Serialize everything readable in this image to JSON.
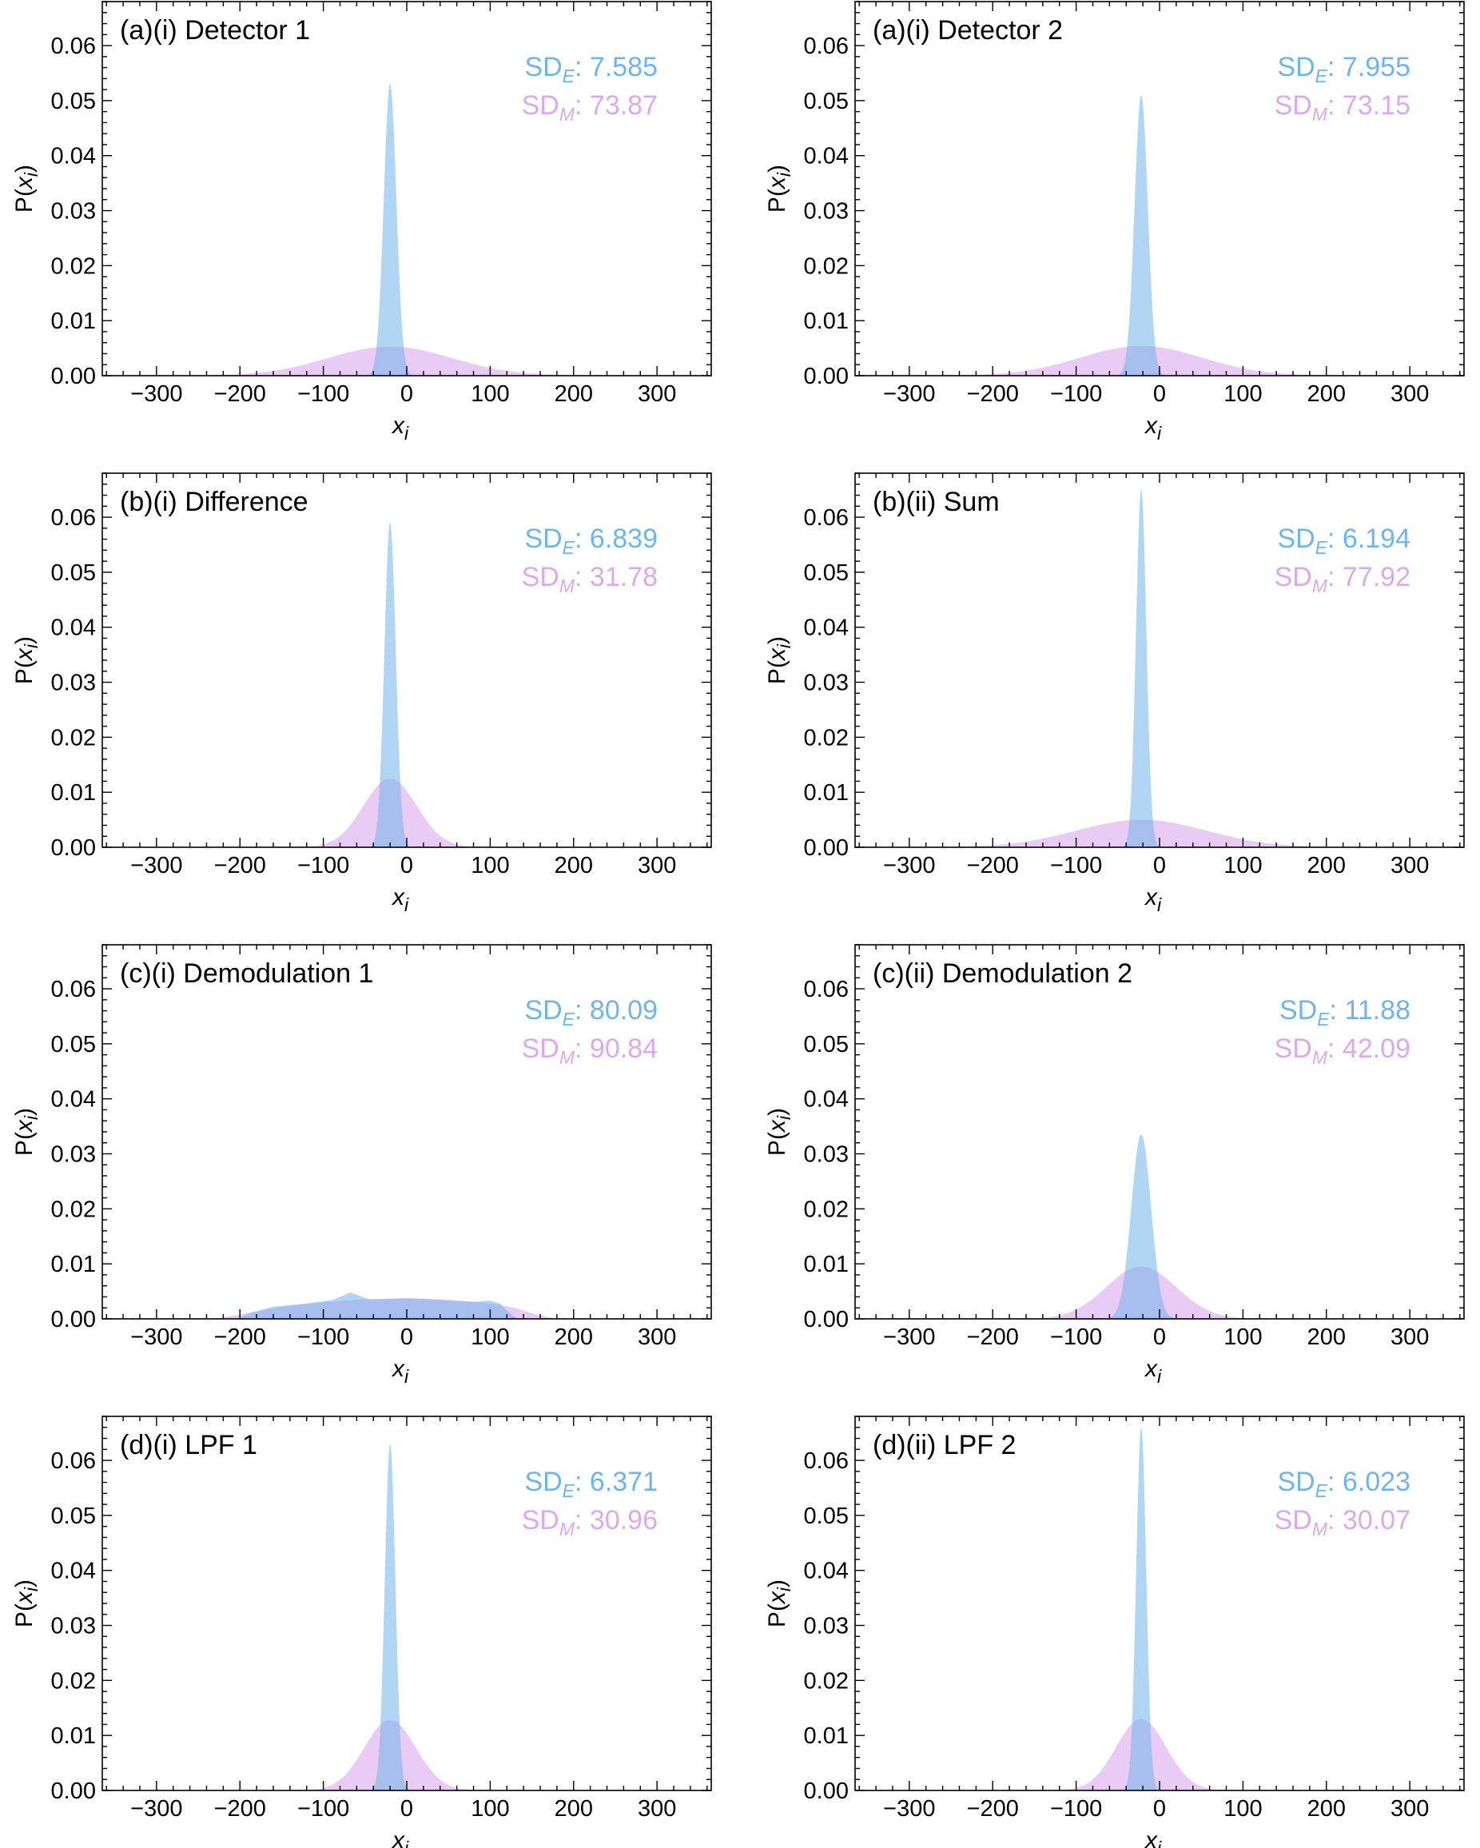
{
  "colors": {
    "experiment": "#6fb4ea",
    "model": "#dca8ee",
    "overlap": "#8aa6ea",
    "axis": "#000000"
  },
  "chart_data": [
    {
      "type": "area",
      "title": "(a)(i) Detector 1",
      "xlabel": "x",
      "xlabel_sub": "i",
      "ylabel": "P(x",
      "ylabel_sub": "i",
      "ylabel_close": ")",
      "xlim": [
        -365,
        365
      ],
      "ylim": [
        0,
        0.068
      ],
      "xticks": [
        -300,
        -200,
        -100,
        0,
        100,
        200,
        300
      ],
      "yticks": [
        0.0,
        0.01,
        0.02,
        0.03,
        0.04,
        0.05,
        0.06
      ],
      "ytick_labels": [
        "0.00",
        "0.01",
        "0.02",
        "0.03",
        "0.04",
        "0.05",
        "0.06"
      ],
      "sd_e_label": "SD",
      "sd_e_sub": "E",
      "sd_e_value": ": 7.585",
      "sd_m_label": "SD",
      "sd_m_sub": "M",
      "sd_m_value": ": 73.87",
      "series": [
        {
          "name": "SD_E (experiment)",
          "shape": "gaussian",
          "mean": -20,
          "sd": 7.585,
          "peak": 0.053
        },
        {
          "name": "SD_M (model)",
          "shape": "gaussian",
          "mean": -20,
          "sd": 73.87,
          "peak": 0.0053
        }
      ]
    },
    {
      "type": "area",
      "title": "(a)(i) Detector 2",
      "xlabel": "x",
      "xlabel_sub": "i",
      "ylabel": "P(x",
      "ylabel_sub": "i",
      "ylabel_close": ")",
      "xlim": [
        -365,
        365
      ],
      "ylim": [
        0,
        0.068
      ],
      "xticks": [
        -300,
        -200,
        -100,
        0,
        100,
        200,
        300
      ],
      "yticks": [
        0.0,
        0.01,
        0.02,
        0.03,
        0.04,
        0.05,
        0.06
      ],
      "ytick_labels": [
        "0.00",
        "0.01",
        "0.02",
        "0.03",
        "0.04",
        "0.05",
        "0.06"
      ],
      "sd_e_label": "SD",
      "sd_e_sub": "E",
      "sd_e_value": ": 7.955",
      "sd_m_label": "SD",
      "sd_m_sub": "M",
      "sd_m_value": ": 73.15",
      "series": [
        {
          "name": "SD_E (experiment)",
          "shape": "gaussian",
          "mean": -22,
          "sd": 7.955,
          "peak": 0.051
        },
        {
          "name": "SD_M (model)",
          "shape": "gaussian",
          "mean": -22,
          "sd": 73.15,
          "peak": 0.0054
        }
      ]
    },
    {
      "type": "area",
      "title": "(b)(i) Difference",
      "xlabel": "x",
      "xlabel_sub": "i",
      "ylabel": "P(x",
      "ylabel_sub": "i",
      "ylabel_close": ")",
      "xlim": [
        -365,
        365
      ],
      "ylim": [
        0,
        0.068
      ],
      "xticks": [
        -300,
        -200,
        -100,
        0,
        100,
        200,
        300
      ],
      "yticks": [
        0.0,
        0.01,
        0.02,
        0.03,
        0.04,
        0.05,
        0.06
      ],
      "ytick_labels": [
        "0.00",
        "0.01",
        "0.02",
        "0.03",
        "0.04",
        "0.05",
        "0.06"
      ],
      "sd_e_label": "SD",
      "sd_e_sub": "E",
      "sd_e_value": ": 6.839",
      "sd_m_label": "SD",
      "sd_m_sub": "M",
      "sd_m_value": ": 31.78",
      "series": [
        {
          "name": "SD_E (experiment)",
          "shape": "gaussian",
          "mean": -20,
          "sd": 6.839,
          "peak": 0.059
        },
        {
          "name": "SD_M (model)",
          "shape": "gaussian",
          "mean": -20,
          "sd": 31.78,
          "peak": 0.0125
        }
      ]
    },
    {
      "type": "area",
      "title": "(b)(ii) Sum",
      "xlabel": "x",
      "xlabel_sub": "i",
      "ylabel": "P(x",
      "ylabel_sub": "i",
      "ylabel_close": ")",
      "xlim": [
        -365,
        365
      ],
      "ylim": [
        0,
        0.068
      ],
      "xticks": [
        -300,
        -200,
        -100,
        0,
        100,
        200,
        300
      ],
      "yticks": [
        0.0,
        0.01,
        0.02,
        0.03,
        0.04,
        0.05,
        0.06
      ],
      "ytick_labels": [
        "0.00",
        "0.01",
        "0.02",
        "0.03",
        "0.04",
        "0.05",
        "0.06"
      ],
      "sd_e_label": "SD",
      "sd_e_sub": "E",
      "sd_e_value": ": 6.194",
      "sd_m_label": "SD",
      "sd_m_sub": "M",
      "sd_m_value": ": 77.92",
      "series": [
        {
          "name": "SD_E (experiment)",
          "shape": "gaussian",
          "mean": -22,
          "sd": 6.194,
          "peak": 0.065
        },
        {
          "name": "SD_M (model)",
          "shape": "gaussian",
          "mean": -22,
          "sd": 77.92,
          "peak": 0.005
        }
      ]
    },
    {
      "type": "area",
      "title": "(c)(i) Demodulation 1",
      "xlabel": "x",
      "xlabel_sub": "i",
      "ylabel": "P(x",
      "ylabel_sub": "i",
      "ylabel_close": ")",
      "xlim": [
        -365,
        365
      ],
      "ylim": [
        0,
        0.068
      ],
      "xticks": [
        -300,
        -200,
        -100,
        0,
        100,
        200,
        300
      ],
      "yticks": [
        0.0,
        0.01,
        0.02,
        0.03,
        0.04,
        0.05,
        0.06
      ],
      "ytick_labels": [
        "0.00",
        "0.01",
        "0.02",
        "0.03",
        "0.04",
        "0.05",
        "0.06"
      ],
      "sd_e_label": "SD",
      "sd_e_sub": "E",
      "sd_e_value": ": 80.09",
      "sd_m_label": "SD",
      "sd_m_sub": "M",
      "sd_m_value": ": 90.84",
      "series": [
        {
          "name": "SD_E (experiment)",
          "shape": "profile",
          "x": [
            -205,
            -185,
            -160,
            -120,
            -90,
            -75,
            -68,
            -60,
            -45,
            -20,
            0,
            20,
            50,
            80,
            100,
            112,
            122,
            132
          ],
          "y": [
            0,
            0.0012,
            0.0022,
            0.0028,
            0.0034,
            0.0043,
            0.0048,
            0.0044,
            0.0035,
            0.0036,
            0.0037,
            0.0036,
            0.0033,
            0.0031,
            0.0033,
            0.0028,
            0.0012,
            0
          ]
        },
        {
          "name": "SD_M (model)",
          "shape": "profile",
          "x": [
            -230,
            -200,
            -150,
            -100,
            -50,
            0,
            50,
            100,
            130,
            155,
            180
          ],
          "y": [
            0,
            0.0008,
            0.0022,
            0.003,
            0.0036,
            0.0038,
            0.0035,
            0.0028,
            0.002,
            0.0008,
            0
          ]
        }
      ]
    },
    {
      "type": "area",
      "title": "(c)(ii) Demodulation 2",
      "xlabel": "x",
      "xlabel_sub": "i",
      "ylabel": "P(x",
      "ylabel_sub": "i",
      "ylabel_close": ")",
      "xlim": [
        -365,
        365
      ],
      "ylim": [
        0,
        0.068
      ],
      "xticks": [
        -300,
        -200,
        -100,
        0,
        100,
        200,
        300
      ],
      "yticks": [
        0.0,
        0.01,
        0.02,
        0.03,
        0.04,
        0.05,
        0.06
      ],
      "ytick_labels": [
        "0.00",
        "0.01",
        "0.02",
        "0.03",
        "0.04",
        "0.05",
        "0.06"
      ],
      "sd_e_label": "SD",
      "sd_e_sub": "E",
      "sd_e_value": ": 11.88",
      "sd_m_label": "SD",
      "sd_m_sub": "M",
      "sd_m_value": ": 42.09",
      "series": [
        {
          "name": "SD_E (experiment)",
          "shape": "gaussian",
          "mean": -22,
          "sd": 11.88,
          "peak": 0.0335
        },
        {
          "name": "SD_M (model)",
          "shape": "gaussian",
          "mean": -22,
          "sd": 42.09,
          "peak": 0.0095
        }
      ]
    },
    {
      "type": "area",
      "title": "(d)(i) LPF 1",
      "xlabel": "x",
      "xlabel_sub": "i",
      "ylabel": "P(x",
      "ylabel_sub": "i",
      "ylabel_close": ")",
      "xlim": [
        -365,
        365
      ],
      "ylim": [
        0,
        0.068
      ],
      "xticks": [
        -300,
        -200,
        -100,
        0,
        100,
        200,
        300
      ],
      "yticks": [
        0.0,
        0.01,
        0.02,
        0.03,
        0.04,
        0.05,
        0.06
      ],
      "ytick_labels": [
        "0.00",
        "0.01",
        "0.02",
        "0.03",
        "0.04",
        "0.05",
        "0.06"
      ],
      "sd_e_label": "SD",
      "sd_e_sub": "E",
      "sd_e_value": ": 6.371",
      "sd_m_label": "SD",
      "sd_m_sub": "M",
      "sd_m_value": ": 30.96",
      "series": [
        {
          "name": "SD_E (experiment)",
          "shape": "gaussian",
          "mean": -20,
          "sd": 6.371,
          "peak": 0.063
        },
        {
          "name": "SD_M (model)",
          "shape": "gaussian",
          "mean": -20,
          "sd": 30.96,
          "peak": 0.0128
        }
      ]
    },
    {
      "type": "area",
      "title": "(d)(ii) LPF 2",
      "xlabel": "x",
      "xlabel_sub": "i",
      "ylabel": "P(x",
      "ylabel_sub": "i",
      "ylabel_close": ")",
      "xlim": [
        -365,
        365
      ],
      "ylim": [
        0,
        0.068
      ],
      "xticks": [
        -300,
        -200,
        -100,
        0,
        100,
        200,
        300
      ],
      "yticks": [
        0.0,
        0.01,
        0.02,
        0.03,
        0.04,
        0.05,
        0.06
      ],
      "ytick_labels": [
        "0.00",
        "0.01",
        "0.02",
        "0.03",
        "0.04",
        "0.05",
        "0.06"
      ],
      "sd_e_label": "SD",
      "sd_e_sub": "E",
      "sd_e_value": ": 6.023",
      "sd_m_label": "SD",
      "sd_m_sub": "M",
      "sd_m_value": ": 30.07",
      "series": [
        {
          "name": "SD_E (experiment)",
          "shape": "gaussian",
          "mean": -22,
          "sd": 6.023,
          "peak": 0.066
        },
        {
          "name": "SD_M (model)",
          "shape": "gaussian",
          "mean": -22,
          "sd": 30.07,
          "peak": 0.013
        }
      ]
    }
  ]
}
